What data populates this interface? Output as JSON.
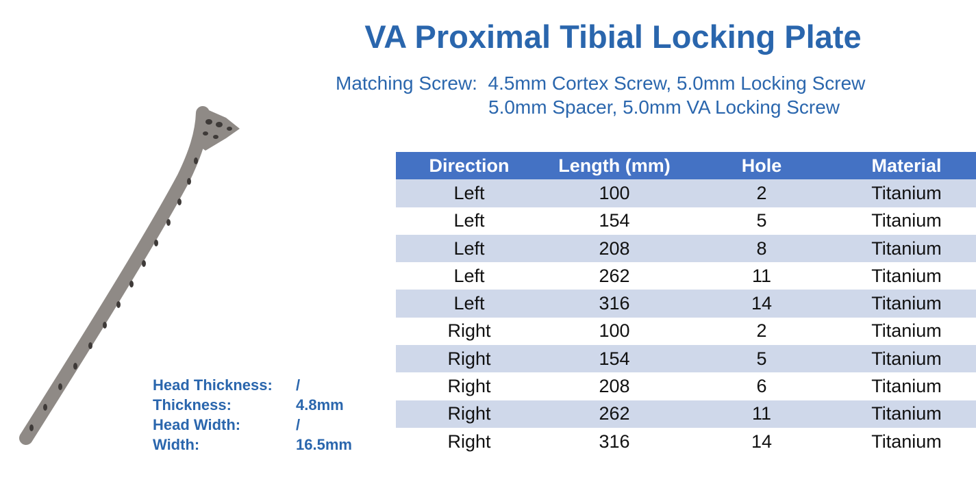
{
  "header": {
    "title": "VA Proximal Tibial Locking Plate",
    "matching_screw": [
      "Matching Screw:  4.5mm Cortex Screw, 5.0mm Locking Screw",
      "5.0mm Spacer, 5.0mm VA Locking Screw"
    ]
  },
  "specs": [
    {
      "label": "Head Thickness:",
      "value": "/"
    },
    {
      "label": "Thickness:",
      "value": "4.8mm"
    },
    {
      "label": "Head Width:",
      "value": "/"
    },
    {
      "label": "Width:",
      "value": "16.5mm"
    }
  ],
  "table": {
    "headers": [
      "Direction",
      "Length (mm)",
      "Hole",
      "Material"
    ],
    "rows": [
      [
        "Left",
        "100",
        "2",
        "Titanium"
      ],
      [
        "Left",
        "154",
        "5",
        "Titanium"
      ],
      [
        "Left",
        "208",
        "8",
        "Titanium"
      ],
      [
        "Left",
        "262",
        "11",
        "Titanium"
      ],
      [
        "Left",
        "316",
        "14",
        "Titanium"
      ],
      [
        "Right",
        "100",
        "2",
        "Titanium"
      ],
      [
        "Right",
        "154",
        "5",
        "Titanium"
      ],
      [
        "Right",
        "208",
        "6",
        "Titanium"
      ],
      [
        "Right",
        "262",
        "11",
        "Titanium"
      ],
      [
        "Right",
        "316",
        "14",
        "Titanium"
      ]
    ]
  }
}
